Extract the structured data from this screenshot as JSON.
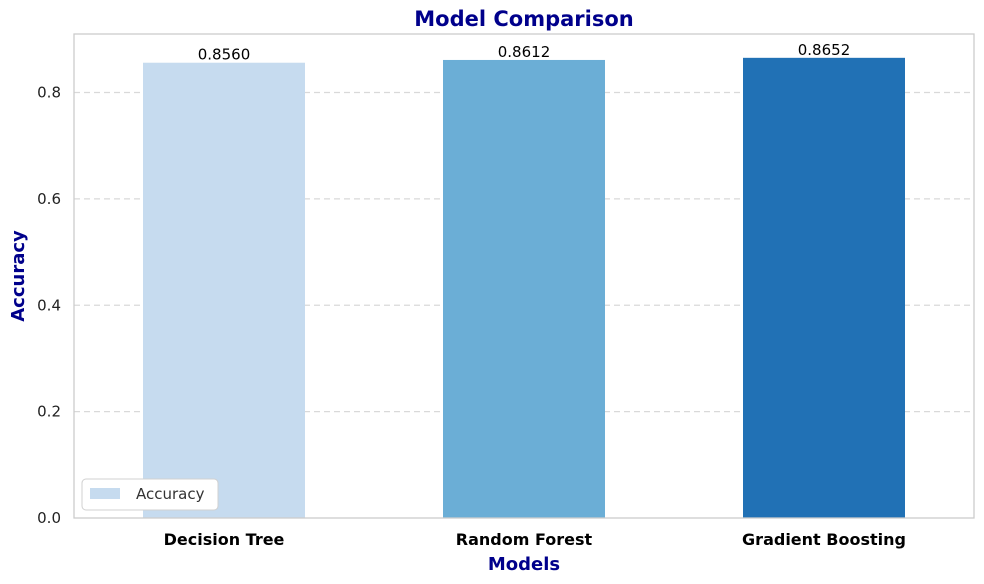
{
  "chart_data": {
    "type": "bar",
    "title": "Model Comparison",
    "xlabel": "Models",
    "ylabel": "Accuracy",
    "categories": [
      "Decision Tree",
      "Random Forest",
      "Gradient Boosting"
    ],
    "series": [
      {
        "name": "Accuracy",
        "values": [
          0.856,
          0.8612,
          0.8652
        ],
        "data_labels": [
          "0.8560",
          "0.8612",
          "0.8652"
        ],
        "colors": [
          "#c6dbef",
          "#6baed6",
          "#2171b5"
        ]
      }
    ],
    "ylim": [
      0,
      0.91
    ],
    "yticks": [
      0.0,
      0.2,
      0.4,
      0.6,
      0.8
    ],
    "ytick_labels": [
      "0.0",
      "0.2",
      "0.4",
      "0.6",
      "0.8"
    ],
    "grid": "y-dashed",
    "legend": {
      "placement": "lower-left",
      "entries": [
        "Accuracy"
      ]
    },
    "colors": {
      "title": "#00008b",
      "axis_label": "#00008b",
      "grid": "#d9d9d9",
      "frame": "#cccccc"
    }
  }
}
